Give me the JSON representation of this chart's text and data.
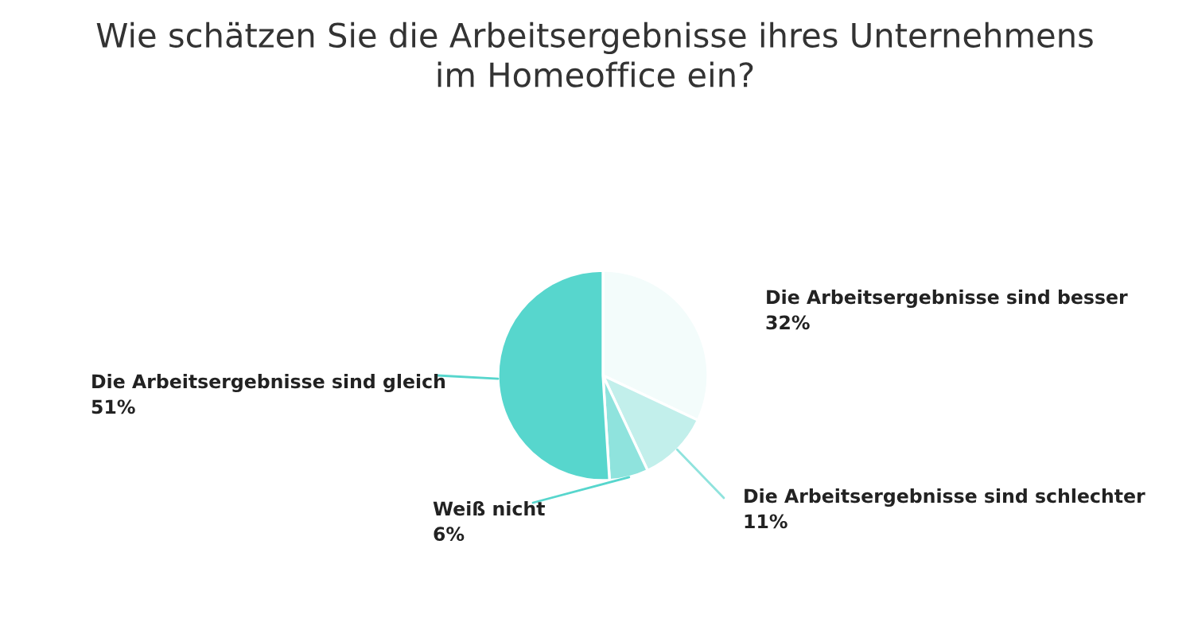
{
  "chart_data": {
    "type": "pie",
    "title": "Wie schätzen Sie die Arbeitsergebnisse ihres Unternehmens\nim Homeoffice ein?",
    "categories": [
      "Die Arbeitsergebnisse sind besser",
      "Die Arbeitsergebnisse sind schlechter",
      "Weiß nicht",
      "Die Arbeitsergebnisse sind gleich"
    ],
    "values": [
      32,
      11,
      6,
      51
    ],
    "colors": [
      "#f3fcfb",
      "#c2efeb",
      "#8fe3dd",
      "#57d6cd"
    ],
    "value_labels": [
      "32%",
      "11%",
      "6%",
      "51%"
    ]
  }
}
